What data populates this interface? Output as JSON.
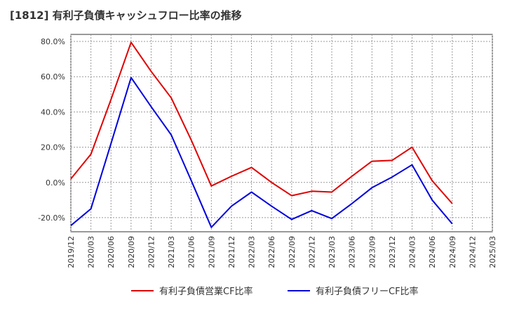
{
  "chart_data": {
    "type": "line",
    "title": "[1812]  有利子負債キャッシュフロー比率の推移",
    "x": [
      "2019/12",
      "2020/03",
      "2020/06",
      "2020/09",
      "2020/12",
      "2021/03",
      "2021/06",
      "2021/09",
      "2021/12",
      "2022/03",
      "2022/06",
      "2022/09",
      "2022/12",
      "2023/03",
      "2023/06",
      "2023/09",
      "2023/12",
      "2024/03",
      "2024/06",
      "2024/09",
      "2024/12",
      "2025/03"
    ],
    "yticks": [
      "80.0%",
      "60.0%",
      "40.0%",
      "20.0%",
      "0.0%",
      "-20.0%"
    ],
    "ylim": [
      -28,
      84
    ],
    "grid": true,
    "legend_position": "bottom",
    "series": [
      {
        "name": "有利子負債営業CF比率",
        "color": "#e00000",
        "values": [
          2.0,
          16.0,
          47.0,
          79.5,
          63.0,
          48.0,
          24.0,
          -2.0,
          3.5,
          8.5,
          0.0,
          -7.5,
          -5.0,
          -5.5,
          3.5,
          12.0,
          12.5,
          20.0,
          1.0,
          -12.0,
          null,
          null
        ]
      },
      {
        "name": "有利子負債フリーCF比率",
        "color": "#0000dd",
        "values": [
          -24.5,
          -15.0,
          22.0,
          59.5,
          43.0,
          27.0,
          1.0,
          -25.5,
          -13.5,
          -5.5,
          -13.5,
          -21.0,
          -16.0,
          -20.5,
          -12.0,
          -3.0,
          3.0,
          10.0,
          -10.0,
          -23.5,
          null,
          null
        ]
      }
    ]
  }
}
